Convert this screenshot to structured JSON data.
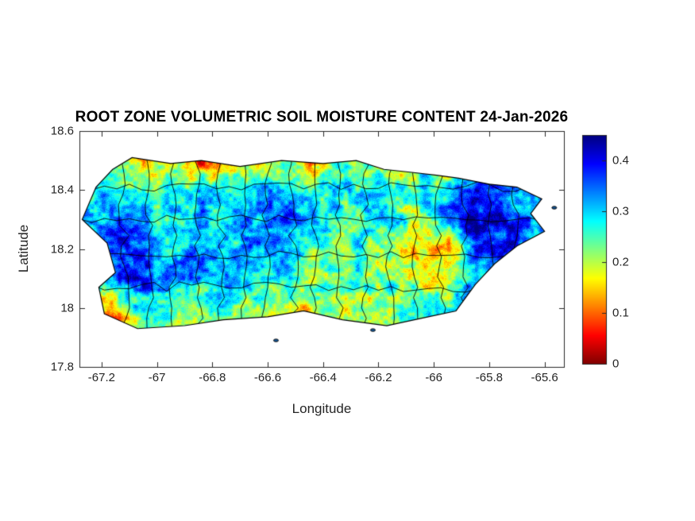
{
  "figure": {
    "background": "#ffffff",
    "axes_color": "#262626"
  },
  "chart_data": {
    "type": "heatmap",
    "title": "ROOT ZONE VOLUMETRIC SOIL MOISTURE CONTENT 24-Jan-2026",
    "xlabel": "Longitude",
    "ylabel": "Latitude",
    "xlim": [
      -67.28,
      -65.53
    ],
    "ylim": [
      17.8,
      18.6
    ],
    "xticks": [
      "-67.2",
      "-67",
      "-66.8",
      "-66.6",
      "-66.4",
      "-66.2",
      "-66",
      "-65.8",
      "-65.6"
    ],
    "xtick_values": [
      -67.2,
      -67.0,
      -66.8,
      -66.6,
      -66.4,
      -66.2,
      -66.0,
      -65.8,
      -65.6
    ],
    "yticks": [
      "18.6",
      "18.4",
      "18.2",
      "18",
      "17.8"
    ],
    "ytick_values": [
      18.6,
      18.4,
      18.2,
      18.0,
      17.8
    ],
    "colorbar": {
      "min": 0,
      "max": 0.45,
      "ticks": [
        0,
        0.1,
        0.2,
        0.3,
        0.4
      ],
      "tick_labels": [
        "0",
        "0.1",
        "0.2",
        "0.3",
        "0.4"
      ],
      "colormap": "jet_reversed",
      "low_color_hex": "#7f0000",
      "high_color_hex": "#00007f"
    },
    "grid": {
      "comment": "coarse volumetric soil moisture field, rows north-to-south lat 18.5..17.9 step -0.1, cols lon -67.25..-65.55 step 0.1, null = ocean",
      "lon0": -67.25,
      "lon_step": 0.1,
      "lat0": 18.5,
      "lat_step": -0.1,
      "values": [
        [
          null,
          0.22,
          0.12,
          0.18,
          0.07,
          0.09,
          0.2,
          0.22,
          0.1,
          0.24,
          0.22,
          0.15,
          0.24,
          0.12,
          0.2,
          null,
          null,
          null
        ],
        [
          0.3,
          0.3,
          0.27,
          0.25,
          0.3,
          0.28,
          0.3,
          0.32,
          0.27,
          0.3,
          0.28,
          0.25,
          0.27,
          0.3,
          0.38,
          0.3,
          null,
          null
        ],
        [
          0.32,
          0.35,
          0.3,
          0.28,
          0.32,
          0.3,
          0.33,
          0.35,
          0.3,
          0.28,
          0.25,
          0.28,
          0.22,
          0.34,
          0.44,
          0.42,
          0.34,
          null
        ],
        [
          0.3,
          0.38,
          0.35,
          0.32,
          0.35,
          0.3,
          0.32,
          0.28,
          0.25,
          0.22,
          0.28,
          0.2,
          0.15,
          0.1,
          0.35,
          0.38,
          0.3,
          null
        ],
        [
          0.28,
          0.35,
          0.38,
          0.35,
          0.3,
          0.33,
          0.28,
          0.3,
          0.22,
          0.25,
          0.22,
          0.25,
          0.18,
          0.22,
          0.32,
          0.3,
          null,
          null
        ],
        [
          0.1,
          0.15,
          0.3,
          0.25,
          0.22,
          0.25,
          0.2,
          0.22,
          0.18,
          0.2,
          0.22,
          0.25,
          0.27,
          0.25,
          null,
          null,
          null,
          null
        ],
        [
          null,
          0.08,
          0.22,
          0.18,
          0.2,
          0.22,
          0.18,
          0.2,
          0.22,
          0.18,
          0.2,
          0.22,
          null,
          null,
          null,
          null,
          null,
          null
        ]
      ]
    },
    "outline": [
      [
        -67.16,
        18.47
      ],
      [
        -67.09,
        18.51
      ],
      [
        -66.95,
        18.49
      ],
      [
        -66.84,
        18.5
      ],
      [
        -66.7,
        18.48
      ],
      [
        -66.55,
        18.5
      ],
      [
        -66.4,
        18.49
      ],
      [
        -66.28,
        18.5
      ],
      [
        -66.18,
        18.47
      ],
      [
        -66.08,
        18.46
      ],
      [
        -65.99,
        18.45
      ],
      [
        -65.91,
        18.44
      ],
      [
        -65.8,
        18.42
      ],
      [
        -65.7,
        18.41
      ],
      [
        -65.61,
        18.37
      ],
      [
        -65.65,
        18.32
      ],
      [
        -65.6,
        18.26
      ],
      [
        -65.7,
        18.21
      ],
      [
        -65.78,
        18.15
      ],
      [
        -65.85,
        18.08
      ],
      [
        -65.92,
        17.99
      ],
      [
        -66.02,
        17.97
      ],
      [
        -66.17,
        17.94
      ],
      [
        -66.33,
        17.96
      ],
      [
        -66.47,
        17.99
      ],
      [
        -66.6,
        17.97
      ],
      [
        -66.76,
        17.96
      ],
      [
        -66.9,
        17.94
      ],
      [
        -67.07,
        17.93
      ],
      [
        -67.19,
        17.98
      ],
      [
        -67.21,
        18.07
      ],
      [
        -67.15,
        18.12
      ],
      [
        -67.18,
        18.22
      ],
      [
        -67.27,
        18.3
      ],
      [
        -67.22,
        18.41
      ]
    ],
    "cays": [
      [
        -66.57,
        17.89
      ],
      [
        -66.22,
        17.925
      ],
      [
        -65.565,
        18.34
      ]
    ],
    "boundaries": {
      "meridians": [
        -67.12,
        -67.03,
        -66.94,
        -66.85,
        -66.77,
        -66.69,
        -66.6,
        -66.51,
        -66.43,
        -66.34,
        -66.25,
        -66.16,
        -66.07,
        -65.98,
        -65.89,
        -65.79,
        -65.7
      ],
      "parallels": [
        18.07,
        18.18,
        18.3,
        18.41
      ]
    }
  }
}
